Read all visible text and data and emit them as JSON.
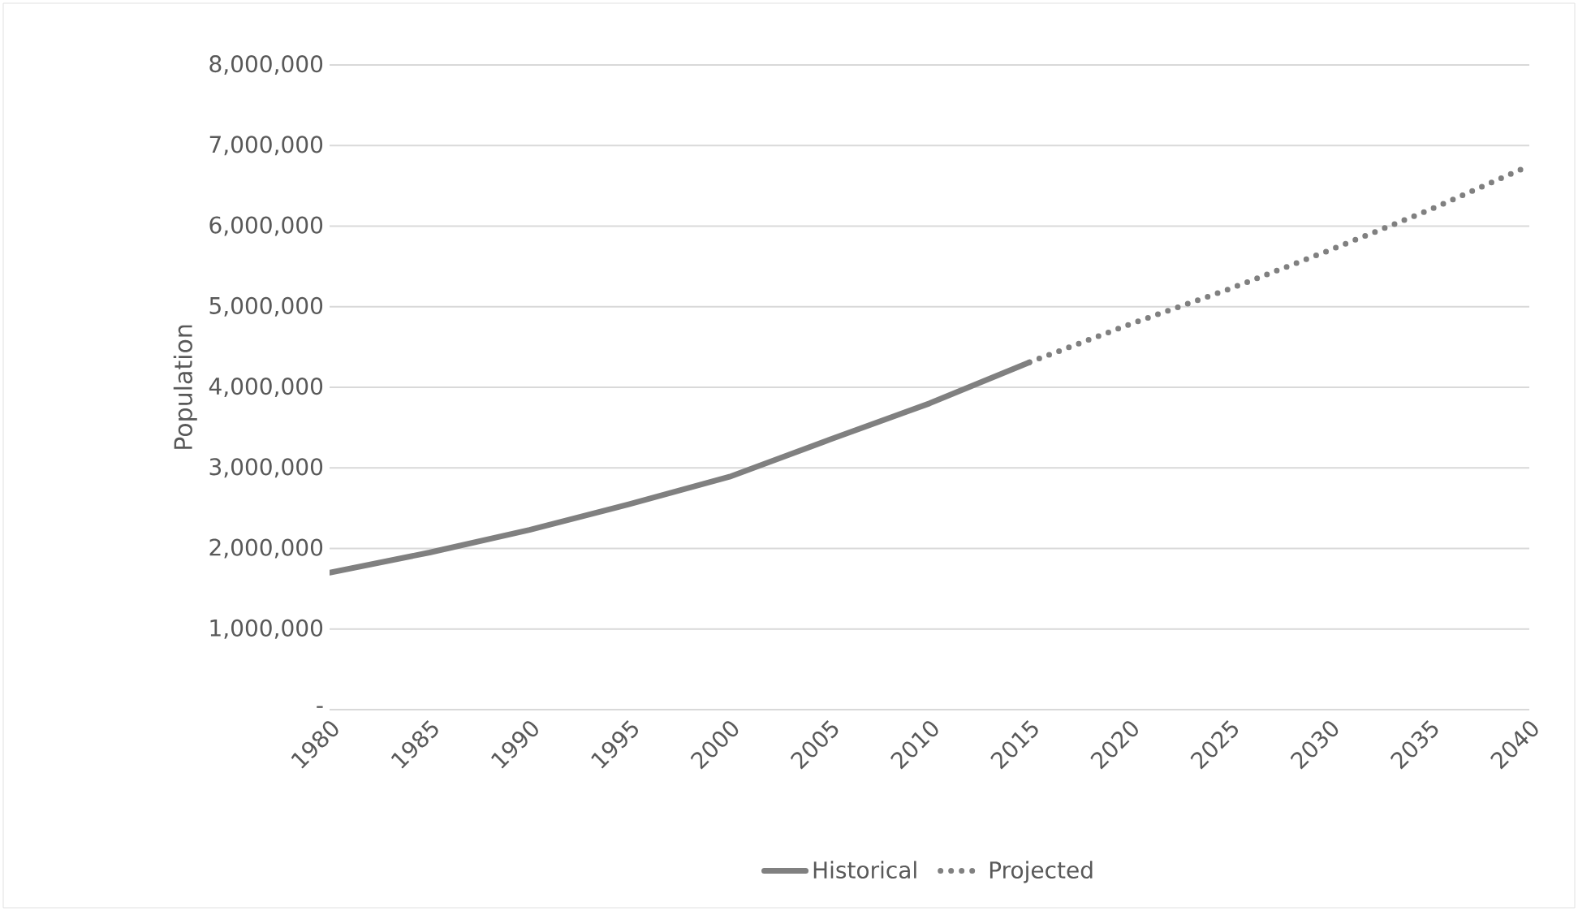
{
  "chart_data": {
    "type": "line",
    "ylabel": "Population",
    "categories": [
      "1980",
      "1985",
      "1990",
      "1995",
      "2000",
      "2005",
      "2010",
      "2015",
      "2020",
      "2025",
      "2030",
      "2035",
      "2040"
    ],
    "series": [
      {
        "name": "Historical",
        "color": "#808080",
        "line_style": "solid",
        "values": [
          1700000,
          1950000,
          2230000,
          2550000,
          2890000,
          3350000,
          3800000,
          4310000,
          null,
          null,
          null,
          null,
          null
        ]
      },
      {
        "name": "Projected",
        "color": "#808080",
        "line_style": "dotted",
        "values": [
          null,
          null,
          null,
          null,
          null,
          null,
          null,
          4310000,
          4780000,
          5220000,
          5700000,
          6200000,
          6750000
        ]
      }
    ],
    "ylim": [
      0,
      8000000
    ],
    "yticks": [
      {
        "value": 0,
        "label": "-"
      },
      {
        "value": 1000000,
        "label": "1,000,000"
      },
      {
        "value": 2000000,
        "label": "2,000,000"
      },
      {
        "value": 3000000,
        "label": "3,000,000"
      },
      {
        "value": 4000000,
        "label": "4,000,000"
      },
      {
        "value": 5000000,
        "label": "5,000,000"
      },
      {
        "value": 6000000,
        "label": "6,000,000"
      },
      {
        "value": 7000000,
        "label": "7,000,000"
      },
      {
        "value": 8000000,
        "label": "8,000,000"
      }
    ],
    "grid": "y",
    "legend": "bottom",
    "marker": "none"
  }
}
